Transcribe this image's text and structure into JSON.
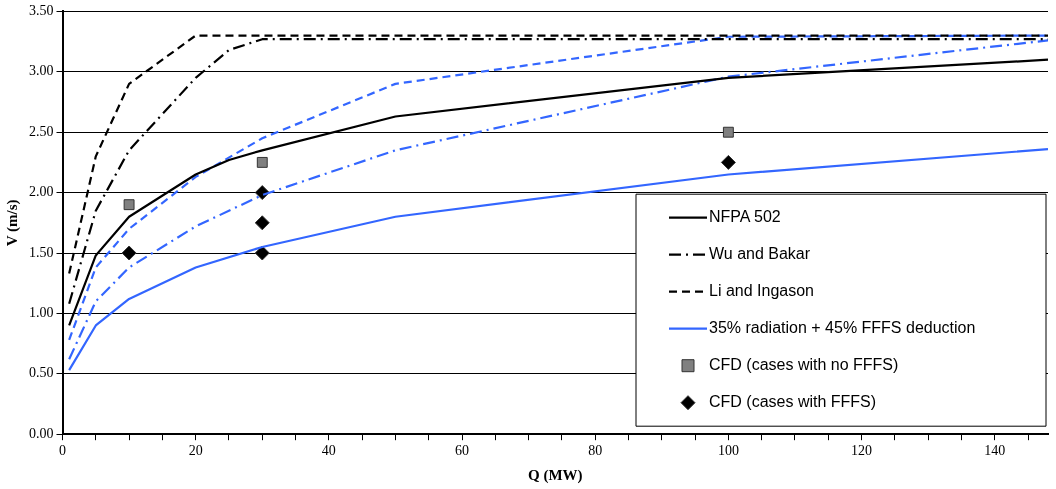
{
  "chart_data": {
    "type": "line",
    "xlabel": "Q (MW)",
    "ylabel": "V (m/s)",
    "xlim": [
      0,
      148
    ],
    "ylim": [
      0,
      3.5
    ],
    "xticks": [
      0,
      {
        "value": 5,
        "label": null
      },
      {
        "value": 10,
        "label": null
      },
      {
        "value": 15,
        "label": null
      },
      20,
      {
        "value": 25,
        "label": null
      },
      {
        "value": 30,
        "label": null
      },
      {
        "value": 35,
        "label": null
      },
      40,
      {
        "value": 45,
        "label": null
      },
      {
        "value": 50,
        "label": null
      },
      {
        "value": 55,
        "label": null
      },
      60,
      {
        "value": 65,
        "label": null
      },
      {
        "value": 70,
        "label": null
      },
      {
        "value": 75,
        "label": null
      },
      80,
      {
        "value": 85,
        "label": null
      },
      {
        "value": 90,
        "label": null
      },
      {
        "value": 95,
        "label": null
      },
      100,
      {
        "value": 105,
        "label": null
      },
      {
        "value": 110,
        "label": null
      },
      {
        "value": 115,
        "label": null
      },
      120,
      {
        "value": 125,
        "label": null
      },
      {
        "value": 130,
        "label": null
      },
      {
        "value": 135,
        "label": null
      },
      140,
      {
        "value": 145,
        "label": null
      }
    ],
    "yticks": [
      {
        "value": 0,
        "label": "0.00"
      },
      {
        "value": 0.5,
        "label": "0.50"
      },
      {
        "value": 1,
        "label": "1.00"
      },
      {
        "value": 1.5,
        "label": "1.50"
      },
      {
        "value": 2,
        "label": "2.00"
      },
      {
        "value": 2.5,
        "label": "2.50"
      },
      {
        "value": 3,
        "label": "3.00"
      },
      {
        "value": 3.5,
        "label": "3.50"
      }
    ],
    "grid": "y",
    "legend": "bottom right",
    "series": [
      {
        "name": "NFPA 502",
        "color": "#000000",
        "line_style": "solid",
        "marker": "none",
        "x": [
          1,
          5,
          10,
          20,
          25,
          30,
          50,
          100,
          148
        ],
        "values": [
          0.9,
          1.48,
          1.8,
          2.15,
          2.27,
          2.35,
          2.63,
          2.95,
          3.1
        ]
      },
      {
        "name": "Wu and Bakar",
        "color": "#000000",
        "line_style": "dashdot",
        "marker": "none",
        "x": [
          1,
          5,
          10,
          20,
          25,
          30,
          148
        ],
        "values": [
          1.08,
          1.85,
          2.35,
          2.95,
          3.18,
          3.27,
          3.27
        ]
      },
      {
        "name": "Li and Ingason",
        "color": "#000000",
        "line_style": "dashed",
        "marker": "none",
        "x": [
          1,
          5,
          10,
          20,
          148
        ],
        "values": [
          1.33,
          2.3,
          2.9,
          3.3,
          3.3
        ]
      },
      {
        "color": "#3366ff",
        "line_style": "dashed",
        "marker": "none",
        "x": [
          1,
          5,
          10,
          20,
          30,
          50,
          100,
          148
        ],
        "values": [
          0.78,
          1.38,
          1.7,
          2.13,
          2.45,
          2.9,
          3.29,
          3.3
        ]
      },
      {
        "color": "#3366ff",
        "line_style": "dashdot",
        "marker": "none",
        "x": [
          1,
          5,
          10,
          20,
          30,
          50,
          100,
          148
        ],
        "values": [
          0.62,
          1.1,
          1.38,
          1.72,
          1.98,
          2.35,
          2.96,
          3.26
        ]
      },
      {
        "name": "35% radiation + 45% FFFS deduction",
        "color": "#3366ff",
        "line_style": "solid",
        "marker": "none",
        "x": [
          1,
          5,
          10,
          20,
          30,
          50,
          100,
          148
        ],
        "values": [
          0.53,
          0.9,
          1.12,
          1.38,
          1.55,
          1.8,
          2.15,
          2.36
        ]
      },
      {
        "name": "CFD (cases with no FFFS)",
        "type": "scatter",
        "color": "#808080",
        "marker": "square",
        "x": [
          10,
          30,
          100
        ],
        "values": [
          1.9,
          2.25,
          2.5
        ]
      },
      {
        "name": "CFD (cases with FFFS)",
        "type": "scatter",
        "color": "#000000",
        "marker": "diamond",
        "x": [
          10,
          30,
          30,
          30,
          100
        ],
        "values": [
          1.5,
          2.0,
          1.75,
          1.5,
          2.25
        ]
      }
    ]
  }
}
